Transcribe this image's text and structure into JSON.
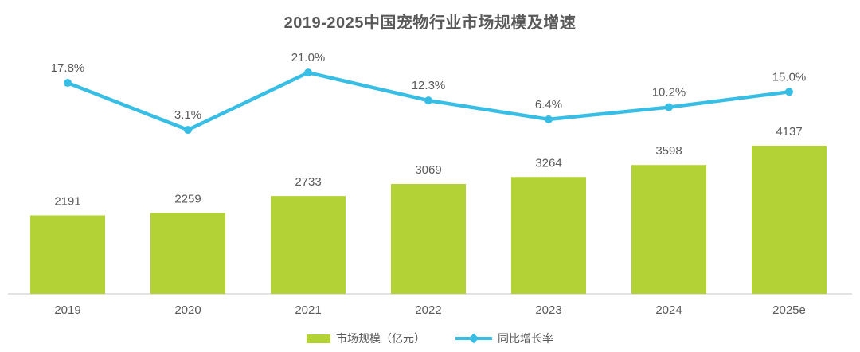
{
  "title": "2019-2025中国宠物行业市场规模及增速",
  "legend": [
    {
      "label": "市场规模（亿元）",
      "marker": "bar-swatch-icon"
    },
    {
      "label": "同比增长率",
      "marker": "line-swatch-icon"
    }
  ],
  "colors": {
    "bar": "#B2D235",
    "line": "#38BEE5",
    "text": "#595959",
    "axis_line": "#D9D9D9",
    "background": "#FFFFFF"
  },
  "chart_data": {
    "type": "bar",
    "subtype": "bar+line combo, line on secondary percent axis",
    "title": "2019-2025中国宠物行业市场规模及增速",
    "categories": [
      "2019",
      "2020",
      "2021",
      "2022",
      "2023",
      "2024",
      "2025e"
    ],
    "series": [
      {
        "name": "市场规模（亿元）",
        "type": "bar",
        "values": [
          2191,
          2259,
          2733,
          3069,
          3264,
          3598,
          4137
        ],
        "labels": [
          "2191",
          "2259",
          "2733",
          "3069",
          "3264",
          "3598",
          "4137"
        ],
        "color": "#B2D235"
      },
      {
        "name": "同比增长率",
        "type": "line",
        "values": [
          17.8,
          3.1,
          21.0,
          12.3,
          6.4,
          10.2,
          15.0
        ],
        "labels": [
          "17.8%",
          "3.1%",
          "21.0%",
          "12.3%",
          "6.4%",
          "10.2%",
          "15.0%"
        ],
        "color": "#38BEE5"
      }
    ],
    "xlabel": "",
    "ylabel": "",
    "bar_axis_range": [
      0,
      4137
    ],
    "grid": false,
    "data_labels": true,
    "legend_position": "bottom"
  }
}
